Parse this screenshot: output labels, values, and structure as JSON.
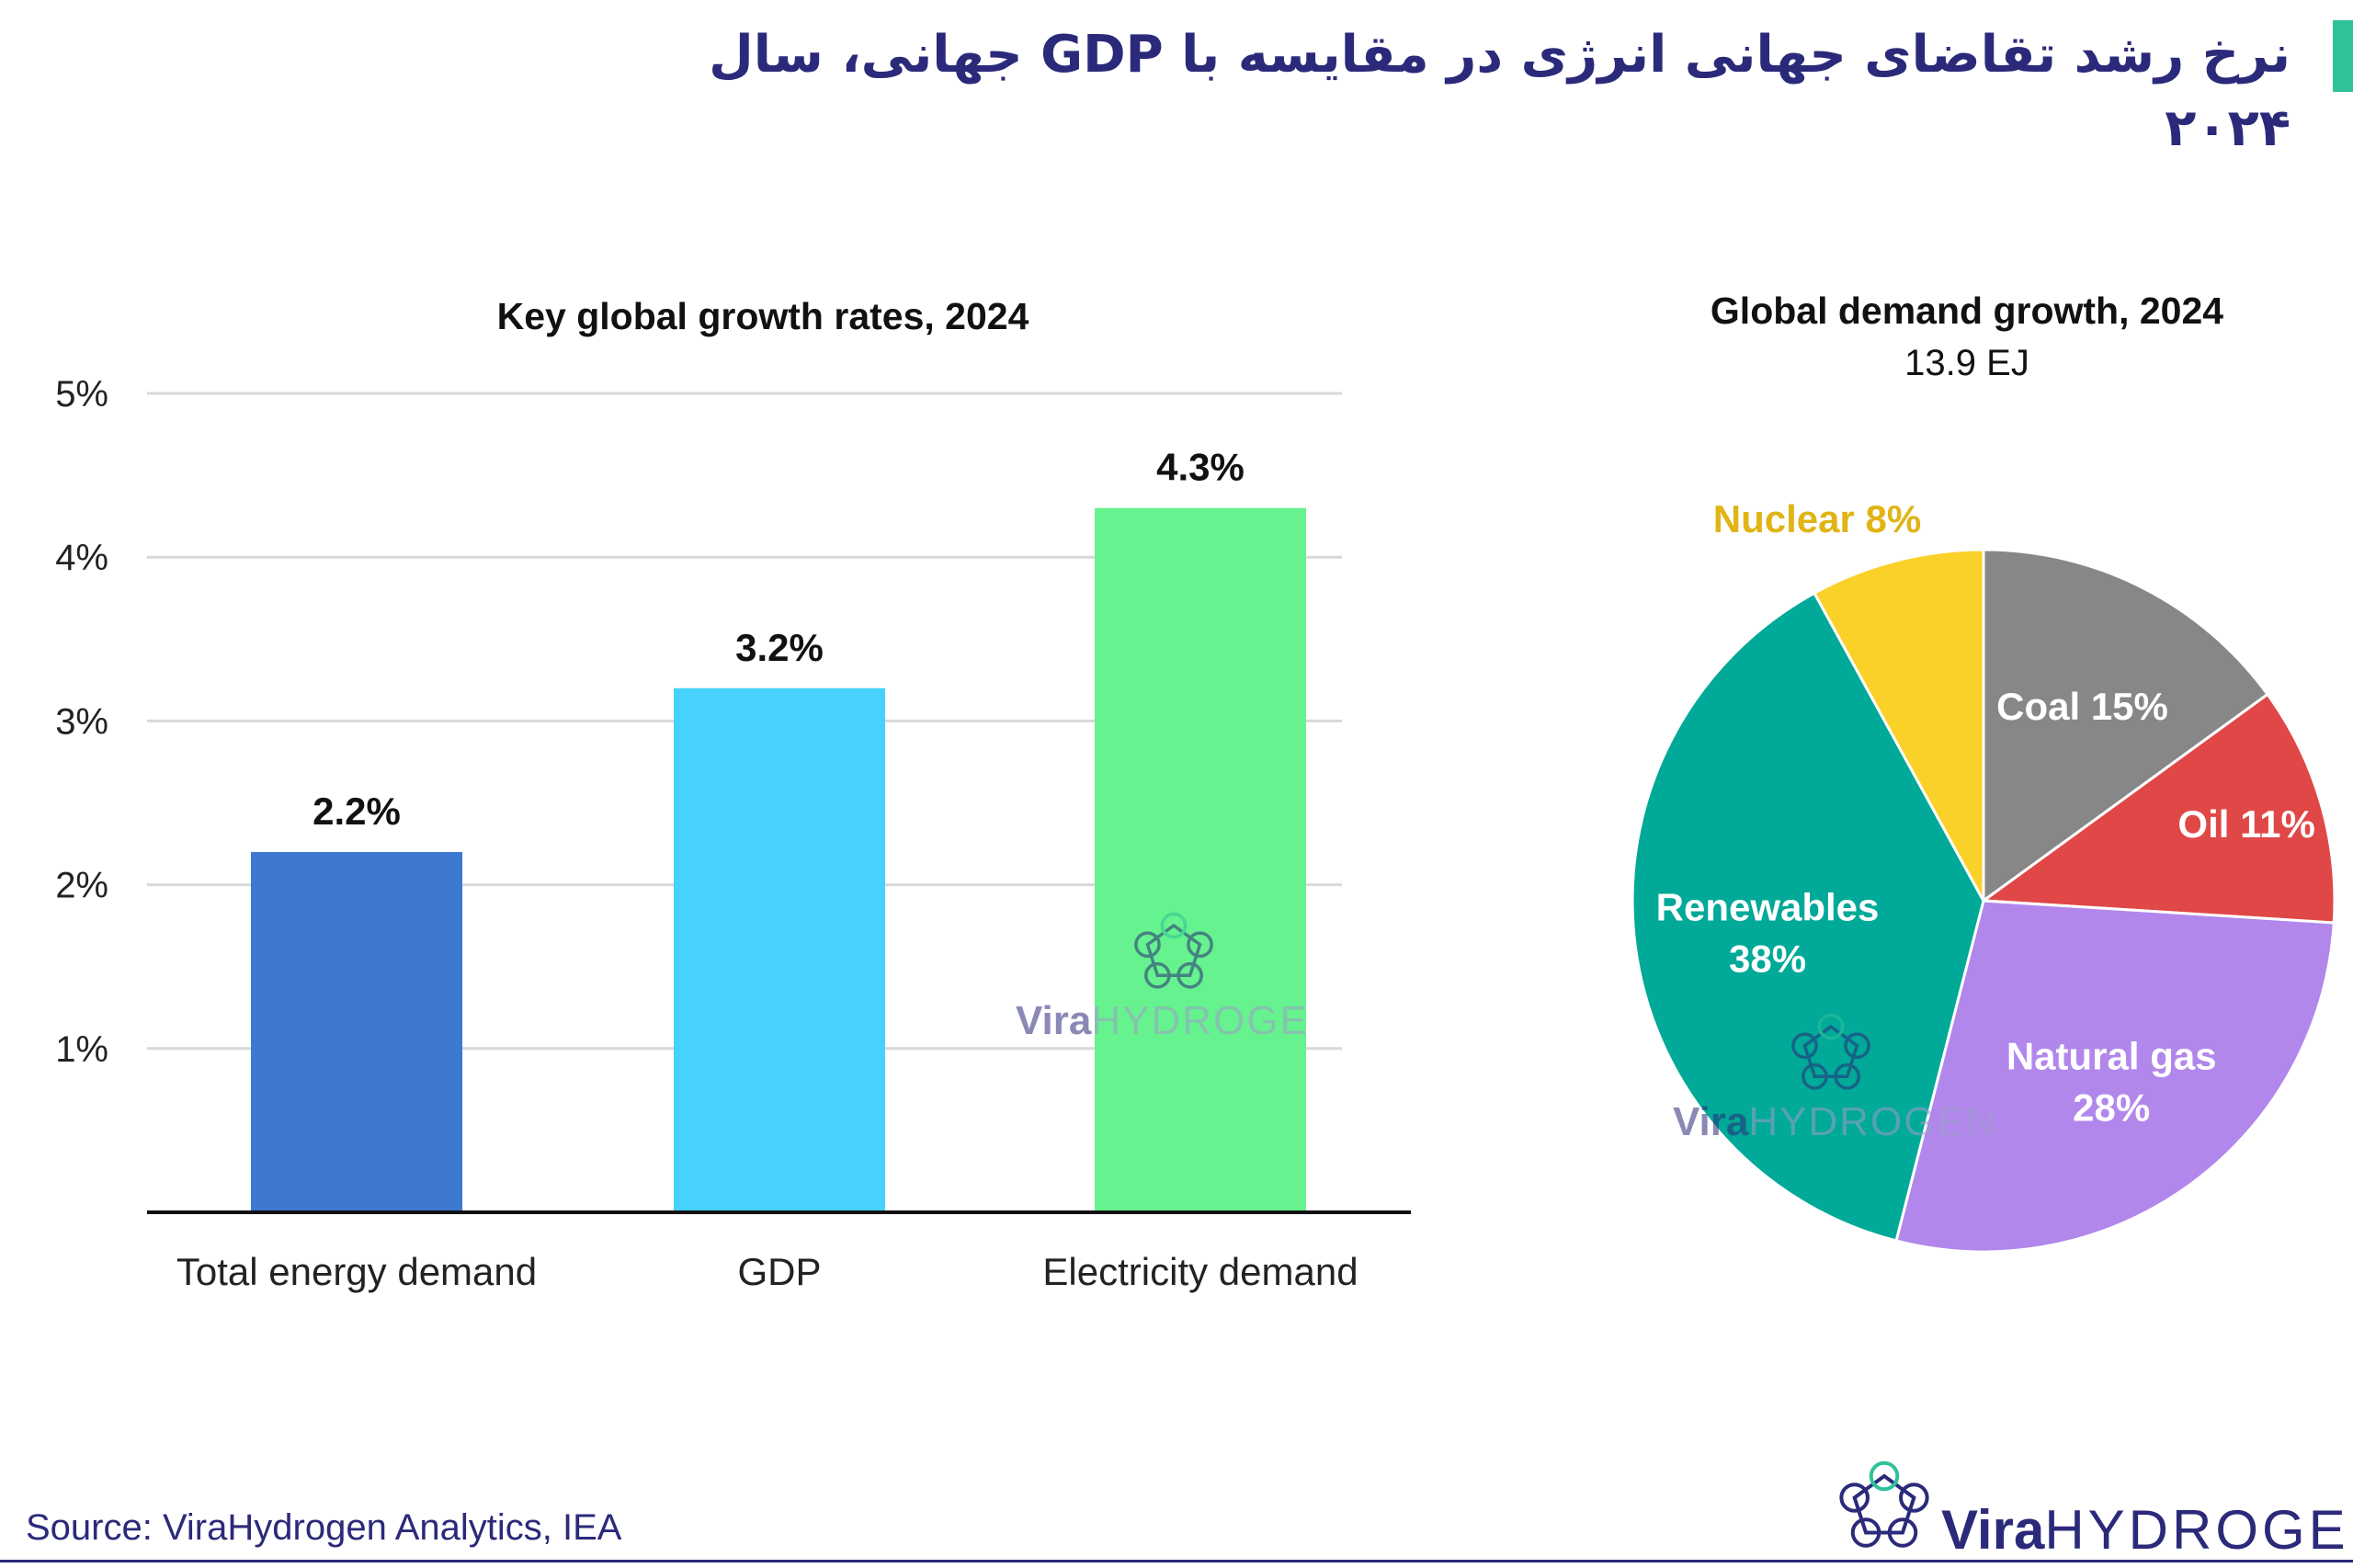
{
  "page": {
    "title": "نرخ رشد تقاضای جهانی انرژی در مقایسه با GDP جهانی، سال ۲۰۲۴",
    "source": "Source: ViraHydrogen Analytics, IEA"
  },
  "brand": {
    "word_a": "Vira",
    "word_b": "HYDROGEN",
    "watermark_bar_b": "HYDROGE",
    "color_dark": "#2b2a7a",
    "color_light": "#b8b8d8",
    "accent_color": "#2fc29a"
  },
  "chart_data": [
    {
      "type": "bar",
      "title": "Key global growth rates, 2024",
      "categories": [
        "Total energy demand",
        "GDP",
        "Electricity demand"
      ],
      "values": [
        2.2,
        3.2,
        4.3
      ],
      "value_labels": [
        "2.2%",
        "3.2%",
        "4.3%"
      ],
      "colors": [
        "#3d78d1",
        "#47d1fd",
        "#66f28e"
      ],
      "ylim": [
        0,
        5
      ],
      "yticks": [
        1,
        2,
        3,
        4,
        5
      ],
      "ytick_labels": [
        "1%",
        "2%",
        "3%",
        "4%",
        "5%"
      ],
      "grid": true,
      "xlabel": "",
      "ylabel": ""
    },
    {
      "type": "pie",
      "title": "Global demand growth, 2024",
      "subtitle": "13.9 EJ",
      "slices": [
        {
          "label": "Coal",
          "share": 15,
          "value_label": "15%",
          "color": "#878787"
        },
        {
          "label": "Oil",
          "share": 11,
          "value_label": "11%",
          "color": "#e04747"
        },
        {
          "label": "Natural gas",
          "share": 28,
          "value_label": "28%",
          "color": "#b187ec"
        },
        {
          "label": "Renewables",
          "share": 38,
          "value_label": "38%",
          "color": "#00a998"
        },
        {
          "label": "Nuclear",
          "share": 8,
          "value_label": "8%",
          "color": "#fad128"
        }
      ],
      "start": "12 o'clock",
      "direction": "clockwise"
    }
  ]
}
